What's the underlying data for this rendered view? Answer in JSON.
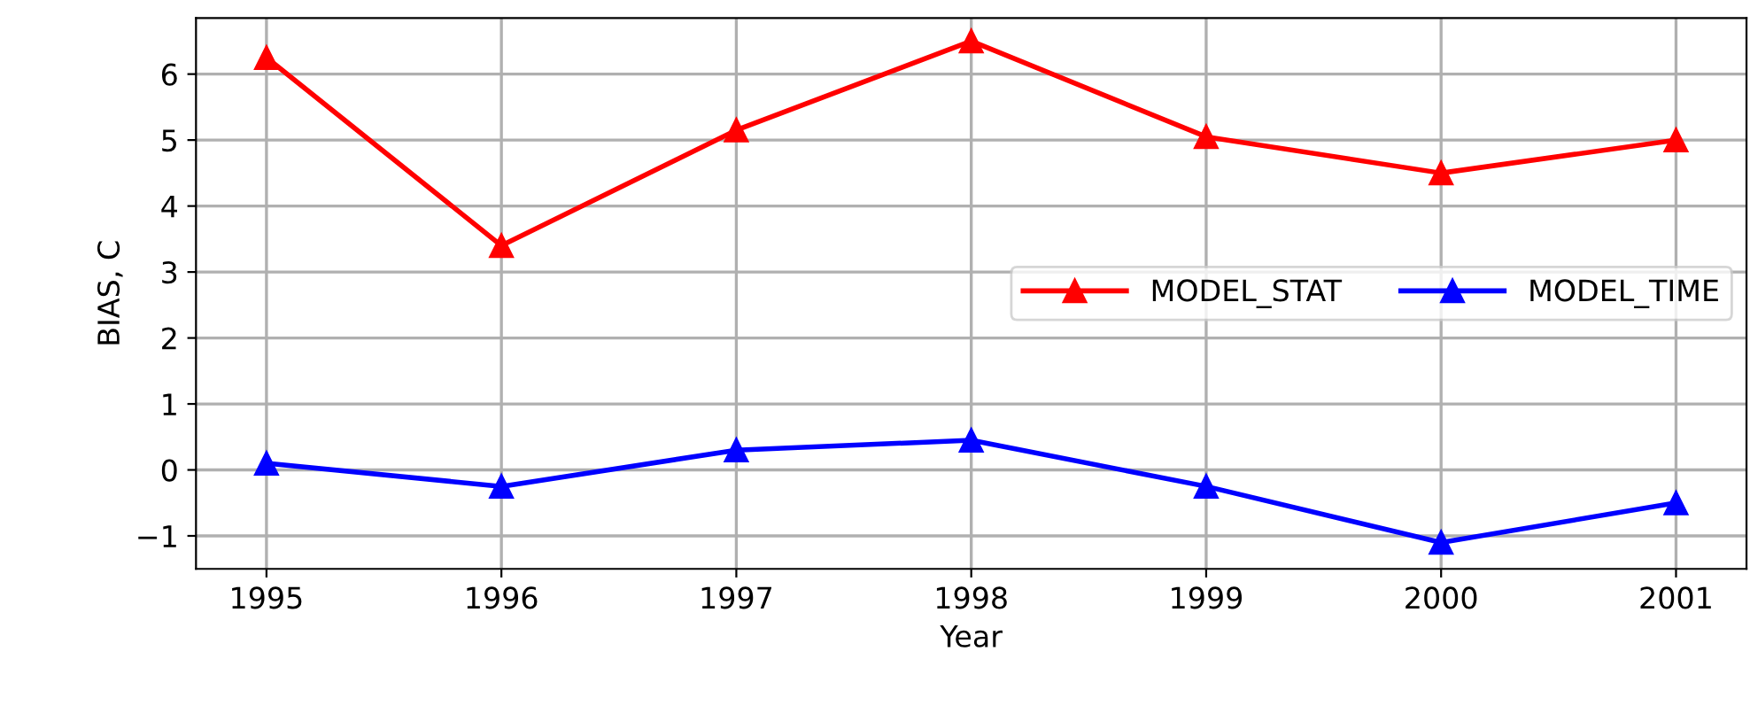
{
  "chart_data": {
    "type": "line",
    "xlabel": "Year",
    "ylabel": "BIAS, C",
    "x": [
      1995,
      1996,
      1997,
      1998,
      1999,
      2000,
      2001
    ],
    "series": [
      {
        "name": "MODEL_STAT",
        "color": "#ff0000",
        "values": [
          6.25,
          3.4,
          5.15,
          6.5,
          5.05,
          4.5,
          5.0
        ]
      },
      {
        "name": "MODEL_TIME",
        "color": "#0000ff",
        "values": [
          0.1,
          -0.25,
          0.3,
          0.45,
          -0.25,
          -1.1,
          -0.5
        ]
      }
    ],
    "xlim": [
      1994.7,
      2001.3
    ],
    "xticks": [
      1995,
      1996,
      1997,
      1998,
      1999,
      2000,
      2001
    ],
    "ylim": [
      -1.5,
      6.85
    ],
    "yticks": [
      {
        "value": -1,
        "label": "−1"
      },
      0,
      1,
      2,
      3,
      4,
      5,
      6
    ],
    "grid": true,
    "legend": "center right",
    "marker": "triangle",
    "line_style": "solid"
  }
}
